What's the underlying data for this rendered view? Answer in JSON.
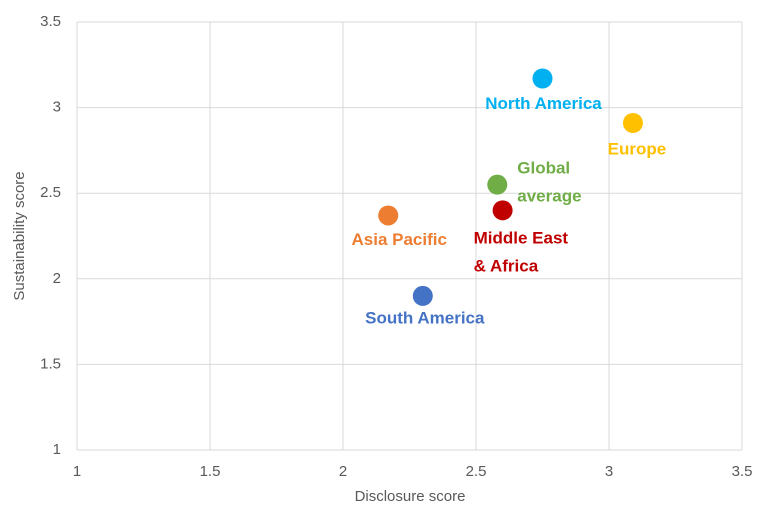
{
  "chart_data": {
    "type": "scatter",
    "x_label": "Disclosure score",
    "y_label": "Sustainability score",
    "xlim": [
      1,
      3.5
    ],
    "xticks": [
      1,
      1.5,
      2,
      2.5,
      3,
      3.5
    ],
    "ylim": [
      1,
      3.5
    ],
    "yticks": [
      1,
      1.5,
      2,
      2.5,
      3,
      3.5
    ],
    "grid": true,
    "series": [
      {
        "name": "North America",
        "color": "#00b0f0",
        "x": [
          2.75
        ],
        "values": [
          3.17
        ]
      },
      {
        "name": "Europe",
        "color": "#ffc000",
        "x": [
          3.09
        ],
        "values": [
          2.91
        ]
      },
      {
        "name": "Global\naverage",
        "color": "#70ad47",
        "x": [
          2.58
        ],
        "values": [
          2.55
        ]
      },
      {
        "name": "Middle East\n& Africa",
        "color": "#c00000",
        "x": [
          2.6
        ],
        "values": [
          2.4
        ]
      },
      {
        "name": "Asia Pacific",
        "color": "#ed7d31",
        "x": [
          2.17
        ],
        "values": [
          2.37
        ]
      },
      {
        "name": "South America",
        "color": "#4472c4",
        "x": [
          2.3
        ],
        "values": [
          1.9
        ]
      }
    ]
  }
}
